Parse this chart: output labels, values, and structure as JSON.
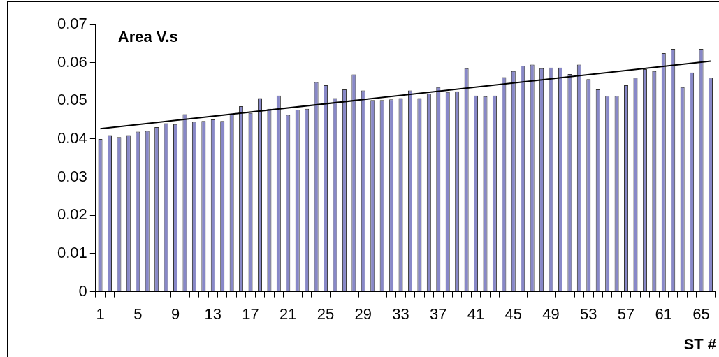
{
  "chart_data": {
    "type": "bar",
    "title": "Area V.s",
    "xlabel": "ST #",
    "categories": [
      "1",
      null,
      null,
      null,
      "5",
      null,
      null,
      null,
      "9",
      null,
      null,
      null,
      "13",
      null,
      null,
      null,
      "17",
      null,
      null,
      null,
      "21",
      null,
      null,
      null,
      "25",
      null,
      null,
      null,
      "29",
      null,
      null,
      null,
      "33",
      null,
      null,
      null,
      "37",
      null,
      null,
      null,
      "41",
      null,
      null,
      null,
      "45",
      null,
      null,
      null,
      "49",
      null,
      null,
      null,
      "53",
      null,
      null,
      null,
      "57",
      null,
      null,
      null,
      "61",
      null,
      null,
      null,
      "65",
      null
    ],
    "series": [
      {
        "type": "bar",
        "color": "#8888c8",
        "values": [
          0.04,
          0.041,
          0.0405,
          0.041,
          0.0419,
          0.0421,
          0.0431,
          0.0441,
          0.0439,
          0.0465,
          0.0445,
          0.0447,
          0.0451,
          0.0447,
          0.0466,
          0.0486,
          0.0468,
          0.0507,
          0.0479,
          0.0514,
          0.0463,
          0.0477,
          0.0479,
          0.0549,
          0.0541,
          0.0507,
          0.053,
          0.0569,
          0.0527,
          0.0502,
          0.0502,
          0.0504,
          0.0507,
          0.0527,
          0.0507,
          0.0519,
          0.0536,
          0.0523,
          0.0525,
          0.0585,
          0.0514,
          0.0512,
          0.0514,
          0.0562,
          0.0578,
          0.0592,
          0.0595,
          0.0585,
          0.0587,
          0.0587,
          0.057,
          0.0595,
          0.0557,
          0.053,
          0.0513,
          0.0513,
          0.0541,
          0.056,
          0.0583,
          0.0578,
          0.0625,
          0.0636,
          0.0536,
          0.0574,
          0.0636,
          0.056
        ]
      },
      {
        "type": "line",
        "color": "#000000",
        "values": [
          0.0427,
          null,
          null,
          null,
          null,
          null,
          null,
          null,
          null,
          null,
          null,
          null,
          null,
          null,
          null,
          null,
          null,
          null,
          null,
          null,
          null,
          null,
          null,
          null,
          null,
          null,
          null,
          null,
          null,
          null,
          null,
          null,
          null,
          null,
          null,
          null,
          null,
          null,
          null,
          null,
          null,
          null,
          null,
          null,
          null,
          null,
          null,
          null,
          null,
          null,
          null,
          null,
          null,
          null,
          null,
          null,
          null,
          null,
          null,
          null,
          null,
          null,
          null,
          null,
          null,
          0.0604
        ]
      }
    ],
    "ylim": [
      0,
      0.07
    ],
    "yticks": [
      0,
      0.01,
      0.02,
      0.03,
      0.04,
      0.05,
      0.06,
      0.07
    ],
    "grid": false,
    "legend": false,
    "marker": "none",
    "line_style": "solid"
  }
}
